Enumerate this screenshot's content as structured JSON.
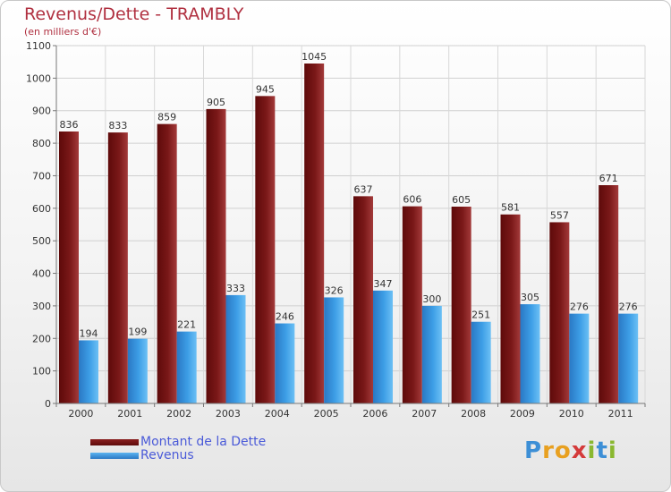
{
  "chart_data": {
    "type": "bar",
    "title": "Revenus/Dette - TRAMBLY",
    "subtitle": "(en milliers d'€)",
    "categories": [
      "2000",
      "2001",
      "2002",
      "2003",
      "2004",
      "2005",
      "2006",
      "2007",
      "2008",
      "2009",
      "2010",
      "2011"
    ],
    "series": [
      {
        "name": "Montant de la Dette",
        "values": [
          836,
          833,
          859,
          905,
          945,
          1045,
          637,
          606,
          605,
          581,
          557,
          671
        ],
        "color": "#7a1818"
      },
      {
        "name": "Revenus",
        "values": [
          194,
          199,
          221,
          333,
          246,
          326,
          347,
          300,
          251,
          305,
          276,
          276
        ],
        "color": "#3d9ee6"
      }
    ],
    "ylim": [
      0,
      1100
    ],
    "yticks": [
      0,
      100,
      200,
      300,
      400,
      500,
      600,
      700,
      800,
      900,
      1000,
      1100
    ],
    "grid": true
  },
  "logo": {
    "letters": [
      "P",
      "r",
      "o",
      "x",
      "i",
      "t",
      "i"
    ],
    "colors": [
      "#3d8fd6",
      "#e8a020",
      "#e8a020",
      "#d43a3a",
      "#8ab830",
      "#3d8fd6",
      "#8ab830"
    ]
  }
}
